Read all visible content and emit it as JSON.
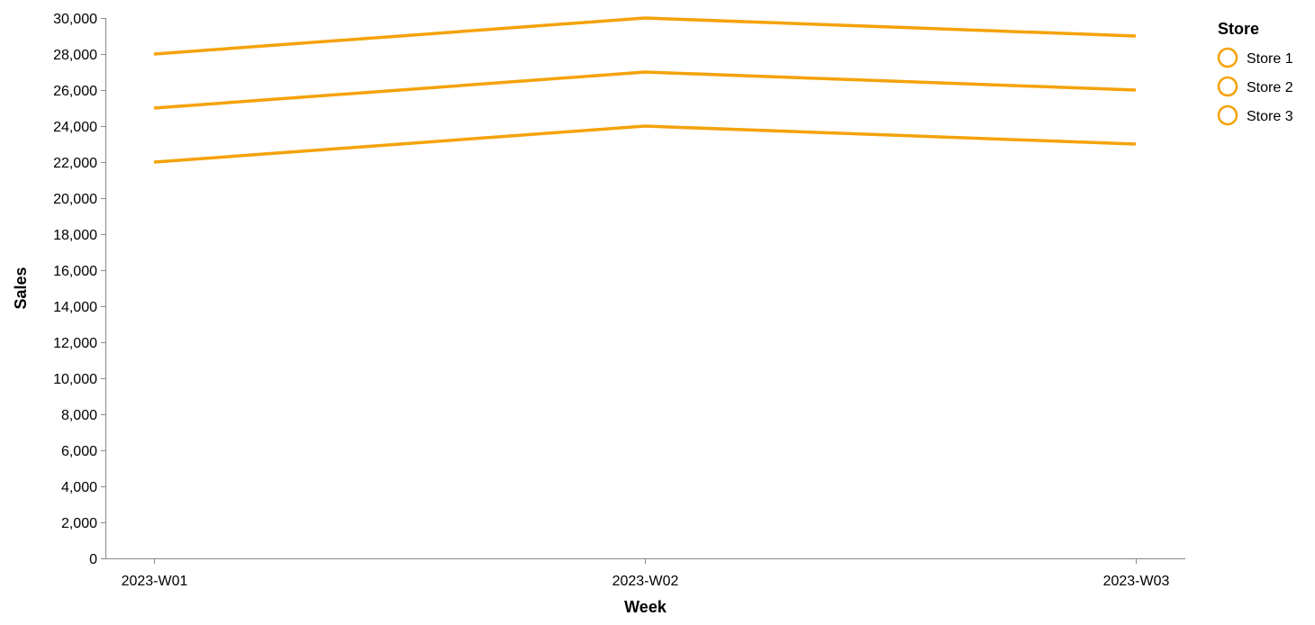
{
  "chart_data": {
    "type": "line",
    "x": [
      "2023-W01",
      "2023-W02",
      "2023-W03"
    ],
    "xlabel": "Week",
    "ylabel": "Sales",
    "ylim": [
      0,
      30000
    ],
    "y_ticks": [
      0,
      2000,
      4000,
      6000,
      8000,
      10000,
      12000,
      14000,
      16000,
      18000,
      20000,
      22000,
      24000,
      26000,
      28000,
      30000
    ],
    "grid": false,
    "legend": {
      "title": "Store",
      "placement": "top-right"
    },
    "series": [
      {
        "name": "Store 1",
        "values": [
          28000,
          30000,
          29000
        ]
      },
      {
        "name": "Store 2",
        "values": [
          25000,
          27000,
          26000
        ]
      },
      {
        "name": "Store 3",
        "values": [
          22000,
          24000,
          23000
        ]
      }
    ],
    "colors": {
      "line": "#f5a20a",
      "axis": "#888888",
      "text": "#000000"
    }
  }
}
